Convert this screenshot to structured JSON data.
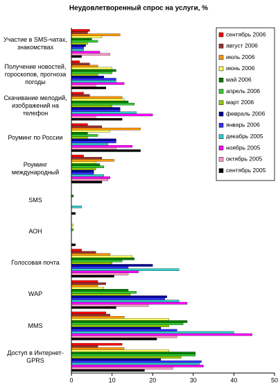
{
  "chart_data": {
    "type": "bar",
    "orientation": "horizontal",
    "title": "Неудовлетворенный спрос на услуги, %",
    "categories": [
      "Участие в SMS-чатах, знакомствах",
      "Получение новостей, гороскопов, прогноза погоды",
      "Скачивание мелодий, изображений на телефон",
      "Роуминг по России",
      "Роуминг международный",
      "SMS",
      "АОН",
      "Голосовая почта",
      "WAP",
      "MMS",
      "Доступ в Интернет-GPRS"
    ],
    "series": [
      {
        "name": "сентябрь 2006",
        "color": "#ff0000",
        "values": [
          4.5,
          2,
          3,
          4,
          3,
          0,
          0,
          2.5,
          6.5,
          8.5,
          12.5
        ]
      },
      {
        "name": "август 2006",
        "color": "#993333",
        "values": [
          4,
          4.5,
          4.5,
          7.5,
          7.5,
          0,
          0,
          6,
          8.5,
          9.5,
          6.5
        ]
      },
      {
        "name": "июль 2006",
        "color": "#ff9900",
        "values": [
          12,
          6.5,
          12.5,
          17,
          10.5,
          0,
          0,
          9.5,
          6.5,
          13,
          13
        ]
      },
      {
        "name": "июнь 2006",
        "color": "#ffff66",
        "values": [
          7.5,
          10,
          13,
          9.5,
          6,
          0,
          0.5,
          15,
          8,
          24,
          24
        ]
      },
      {
        "name": "май 2006",
        "color": "#008000",
        "values": [
          5,
          11,
          14,
          4,
          7,
          0.5,
          0,
          15.5,
          14,
          28.5,
          30.5
        ]
      },
      {
        "name": "апрель 2006",
        "color": "#33cc33",
        "values": [
          6.5,
          10,
          15.5,
          6.5,
          8,
          0,
          0.5,
          12.5,
          16,
          27.5,
          30.5
        ]
      },
      {
        "name": "март 2006",
        "color": "#99cc00",
        "values": [
          4,
          6.5,
          10,
          4,
          6,
          0,
          0,
          10,
          14.5,
          24,
          27
        ]
      },
      {
        "name": "февраль 2006",
        "color": "#000099",
        "values": [
          3.5,
          8,
          12,
          11,
          5.5,
          0,
          0,
          20,
          23.5,
          22,
          22
        ]
      },
      {
        "name": "январь 2006",
        "color": "#3333ff",
        "values": [
          3,
          11,
          12,
          11,
          5.5,
          0,
          0,
          14,
          23,
          26,
          32
        ]
      },
      {
        "name": "декабрь 2005",
        "color": "#33cccc",
        "values": [
          3,
          11,
          16,
          9,
          8,
          2.5,
          0,
          26.5,
          26.5,
          40,
          31.5
        ]
      },
      {
        "name": "ноябрь 2005",
        "color": "#ff00ff",
        "values": [
          7,
          13,
          20,
          15,
          9.5,
          0,
          0,
          16.5,
          28.5,
          44.5,
          32.5
        ]
      },
      {
        "name": "октябрь 2005",
        "color": "#ff99cc",
        "values": [
          9.5,
          6,
          6,
          11,
          9,
          0,
          0,
          14,
          19,
          26,
          25
        ]
      },
      {
        "name": "сентябрь 2005",
        "color": "#000000",
        "values": [
          2.5,
          8.5,
          12.5,
          17,
          7.5,
          1,
          1,
          10.5,
          11,
          21,
          18
        ]
      }
    ],
    "xlim": [
      0,
      50
    ],
    "xticks": [
      0,
      10,
      20,
      30,
      40,
      50
    ],
    "legend": "top-right"
  }
}
